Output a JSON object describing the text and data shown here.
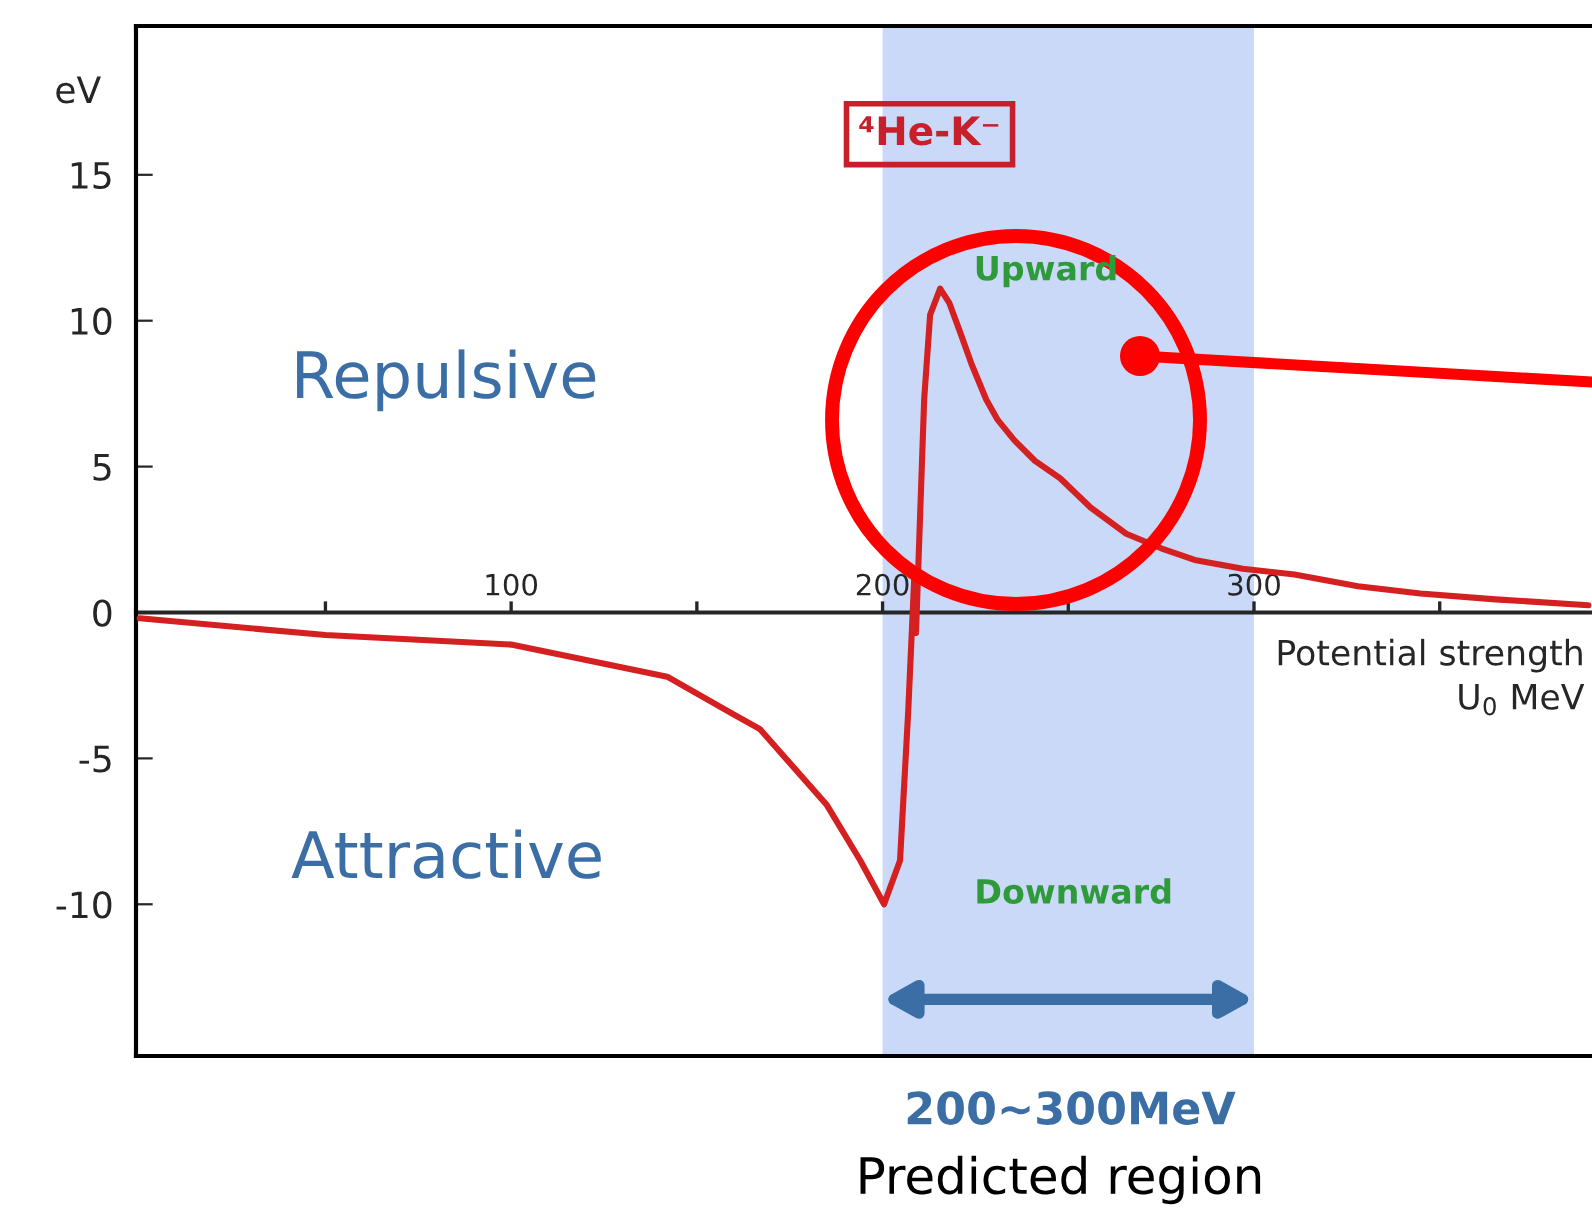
{
  "chart_data": {
    "type": "line",
    "xlabel": "Potential strength\nU$_{0}$ MeV",
    "ylabel": "eV",
    "xlim": [
      -1,
      391
    ],
    "ylim": [
      -15.2,
      20.1
    ],
    "xticks": [
      {
        "value": 50,
        "label": null
      },
      100,
      {
        "value": 150,
        "label": null
      },
      200,
      {
        "value": 250,
        "label": null
      },
      300,
      {
        "value": 350,
        "label": null
      }
    ],
    "yticks": [
      -10,
      -5,
      0,
      5,
      10,
      15
    ],
    "x": [
      0,
      50,
      100,
      142,
      160,
      167,
      185,
      194,
      200.4,
      204.7,
      206.9,
      208.5,
      209,
      211.2,
      212.8,
      215.5,
      218,
      220.9,
      224,
      227.9,
      231,
      235.5,
      241,
      247.8,
      256,
      265.6,
      275,
      284,
      297,
      310.9,
      328,
      344.8,
      365,
      390
    ],
    "series": [
      {
        "color": "#d42020",
        "values": [
          -0.2,
          -0.77,
          -1.1,
          -2.2,
          -3.5,
          -4.0,
          -6.6,
          -8.5,
          -10.0,
          -8.5,
          -3.4,
          1.1,
          -0.7,
          7.3,
          10.2,
          11.1,
          10.6,
          9.6,
          8.5,
          7.3,
          6.6,
          5.9,
          5.2,
          4.6,
          3.6,
          2.7,
          2.2,
          1.8,
          1.5,
          1.3,
          0.9,
          0.65,
          0.45,
          0.25
        ]
      }
    ],
    "bands": [
      {
        "axis": "x",
        "from": 200,
        "to": 300,
        "label": "200~300MeV",
        "color": "#c9d9f7"
      }
    ],
    "annotations": [
      "⁴He-K⁻",
      "Upward",
      "Downward",
      "Repulsive",
      "Attractive",
      "Predicted region"
    ]
  }
}
